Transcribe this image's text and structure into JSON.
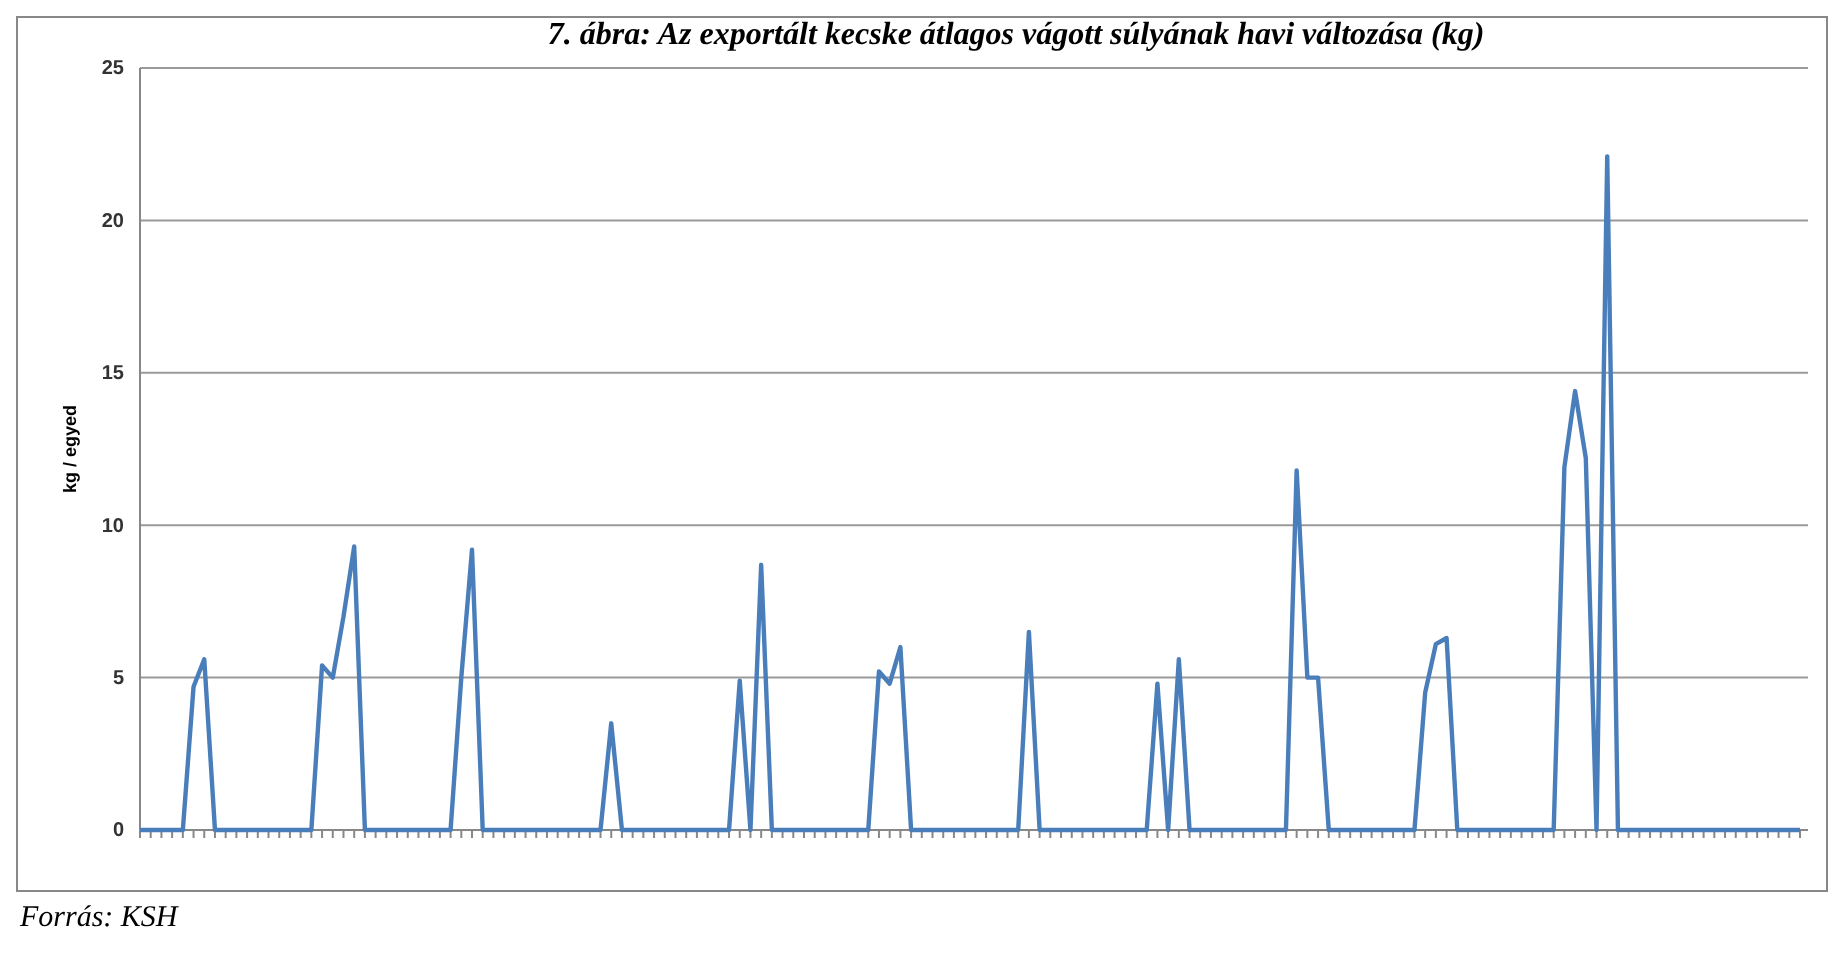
{
  "chart_data": {
    "type": "line",
    "title": "7. ábra: Az exportált kecske átlagos vágott súlyának havi változása (kg)",
    "ylabel": "kg / egyed",
    "annotations": [
      "Forrás: KSH"
    ],
    "ylim": [
      0,
      25
    ],
    "yticks": [
      0,
      5,
      10,
      15,
      20,
      25
    ],
    "grid": "y",
    "marker": "none",
    "line_style": "solid",
    "tick_labels": "y",
    "categories": [
      null,
      null,
      null,
      null,
      null,
      null,
      null,
      null,
      null,
      null,
      null,
      null,
      null,
      null,
      null,
      null,
      null,
      null,
      null,
      null,
      null,
      null,
      null,
      null,
      null,
      null,
      null,
      null,
      null,
      null,
      null,
      null,
      null,
      null,
      null,
      null,
      null,
      null,
      null,
      null,
      null,
      null,
      null,
      null,
      null,
      null,
      null,
      null,
      null,
      null,
      null,
      null,
      null,
      null,
      null,
      null,
      null,
      null,
      null,
      null,
      null,
      null,
      null,
      null,
      null,
      null,
      null,
      null,
      null,
      null,
      null,
      null,
      null,
      null,
      null,
      null,
      null,
      null,
      null,
      null,
      null,
      null,
      null,
      null,
      null,
      null,
      null,
      null,
      null,
      null,
      null,
      null,
      null,
      null,
      null,
      null,
      null,
      null,
      null,
      null,
      null,
      null,
      null,
      null,
      null,
      null,
      null,
      null,
      null,
      null,
      null,
      null,
      null,
      null,
      null,
      null,
      null,
      null,
      null,
      null,
      null,
      null,
      null,
      null,
      null,
      null,
      null,
      null,
      null,
      null,
      null,
      null,
      null,
      null,
      null,
      null,
      null,
      null,
      null,
      null,
      null,
      null,
      null,
      null,
      null,
      null,
      null,
      null,
      null,
      null,
      null,
      null,
      null,
      null,
      null,
      null
    ],
    "series": [
      {
        "color": "#4a7ebb",
        "values": [
          0,
          0,
          0,
          0,
          0,
          4.7,
          5.6,
          0,
          0,
          0,
          0,
          0,
          0,
          0,
          0,
          0,
          0,
          5.4,
          5.0,
          7.0,
          9.3,
          0,
          0,
          0,
          0,
          0,
          0,
          0,
          0,
          0,
          5,
          9.2,
          0,
          0,
          0,
          0,
          0,
          0,
          0,
          0,
          0,
          0,
          0,
          0,
          3.5,
          0,
          0,
          0,
          0,
          0,
          0,
          0,
          0,
          0,
          0,
          0,
          4.9,
          0,
          8.7,
          0,
          0,
          0,
          0,
          0,
          0,
          0,
          0,
          0,
          0,
          5.2,
          4.8,
          6.0,
          0,
          0,
          0,
          0,
          0,
          0,
          0,
          0,
          0,
          0,
          0,
          6.5,
          0,
          0,
          0,
          0,
          0,
          0,
          0,
          0,
          0,
          0,
          0,
          4.8,
          0,
          5.6,
          0,
          0,
          0,
          0,
          0,
          0,
          0,
          0,
          0,
          0,
          11.8,
          5.0,
          5.0,
          0,
          0,
          0,
          0,
          0,
          0,
          0,
          0,
          0,
          4.5,
          6.1,
          6.3,
          0,
          0,
          0,
          0,
          0,
          0,
          0,
          0,
          0,
          0,
          11.9,
          14.4,
          12.2,
          0,
          22.1,
          0,
          0,
          0,
          0,
          0,
          0,
          0,
          0,
          0,
          0,
          0,
          0,
          0,
          0,
          0,
          0,
          0,
          0
        ]
      }
    ]
  }
}
